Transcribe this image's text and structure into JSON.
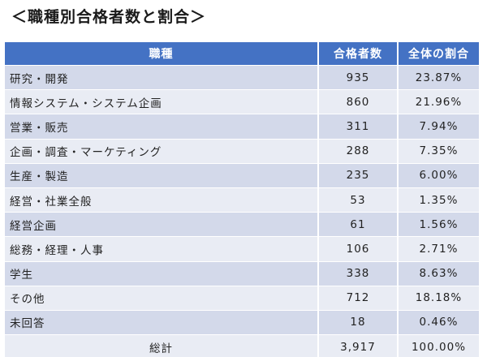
{
  "title": "＜職種別合格者数と割合＞",
  "table": {
    "headers": [
      "職種",
      "合格者数",
      "全体の割合"
    ],
    "rows": [
      {
        "category": "研究・開発",
        "count": "935",
        "share": "23.87%"
      },
      {
        "category": "情報システム・システム企画",
        "count": "860",
        "share": "21.96%"
      },
      {
        "category": "営業・販売",
        "count": "311",
        "share": "7.94%"
      },
      {
        "category": "企画・調査・マーケティング",
        "count": "288",
        "share": "7.35%"
      },
      {
        "category": "生産・製造",
        "count": "235",
        "share": "6.00%"
      },
      {
        "category": "経営・社業全般",
        "count": "53",
        "share": "1.35%"
      },
      {
        "category": "経営企画",
        "count": "61",
        "share": "1.56%"
      },
      {
        "category": "総務・経理・人事",
        "count": "106",
        "share": "2.71%"
      },
      {
        "category": "学生",
        "count": "338",
        "share": "8.63%"
      },
      {
        "category": "その他",
        "count": "712",
        "share": "18.18%"
      },
      {
        "category": "未回答",
        "count": "18",
        "share": "0.46%"
      }
    ],
    "total": {
      "label": "総計",
      "count": "3,917",
      "share": "100.00%"
    }
  },
  "colors": {
    "header_bg": "#4472c4",
    "row_odd": "#d3d9ea",
    "row_even": "#e9ecf4"
  }
}
